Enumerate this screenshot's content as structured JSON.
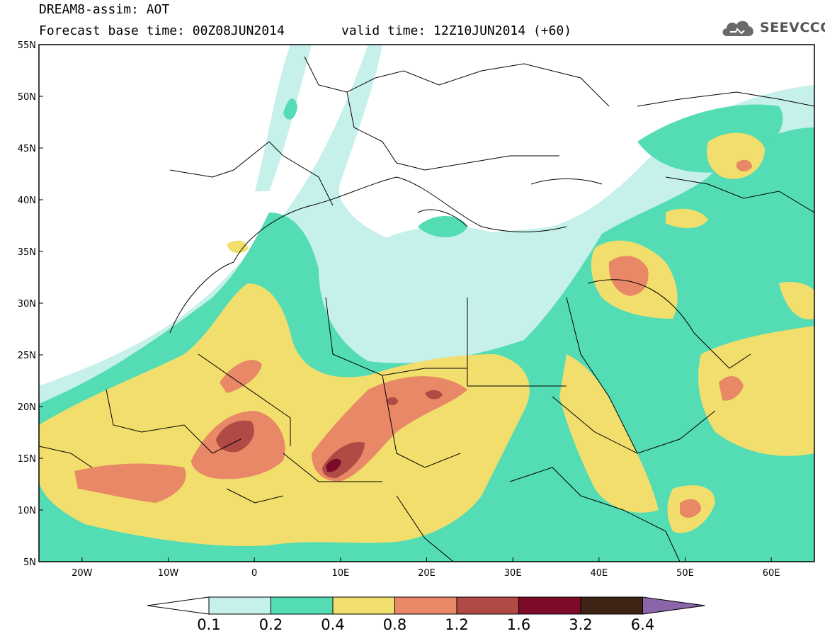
{
  "header": {
    "title_line1": "DREAM8-assim: AOT",
    "title_line2": "Forecast base time: 00Z08JUN2014",
    "valid_time": "valid time: 12Z10JUN2014 (+60)"
  },
  "logo": {
    "text": "SEEVCCC",
    "icon": "cloud-logo-icon"
  },
  "map": {
    "lon_range": [
      -25,
      65
    ],
    "lat_range": [
      5,
      55
    ],
    "lat_labels": [
      "5N",
      "10N",
      "15N",
      "20N",
      "25N",
      "30N",
      "35N",
      "40N",
      "45N",
      "50N",
      "55N"
    ],
    "lon_labels": [
      "20W",
      "10W",
      "0",
      "10E",
      "20E",
      "30E",
      "40E",
      "50E",
      "60E"
    ],
    "colors": {
      "c01": "#c6f0ea",
      "c02": "#54dcb4",
      "c04": "#f2de6c",
      "c08": "#e88866",
      "c12": "#b04a44",
      "c16": "#7d0a28",
      "c32": "#3d2414",
      "c64": "#8c64a8",
      "border": "#000000"
    }
  },
  "colorbar": {
    "labels": [
      "0.1",
      "0.2",
      "0.4",
      "0.8",
      "1.2",
      "1.6",
      "3.2",
      "6.4"
    ],
    "colors": [
      "#c6f0ea",
      "#54dcb4",
      "#f2de6c",
      "#e88866",
      "#b04a44",
      "#7d0a28",
      "#3d2414"
    ],
    "low_color": "#ffffff",
    "high_color": "#8c64a8"
  }
}
